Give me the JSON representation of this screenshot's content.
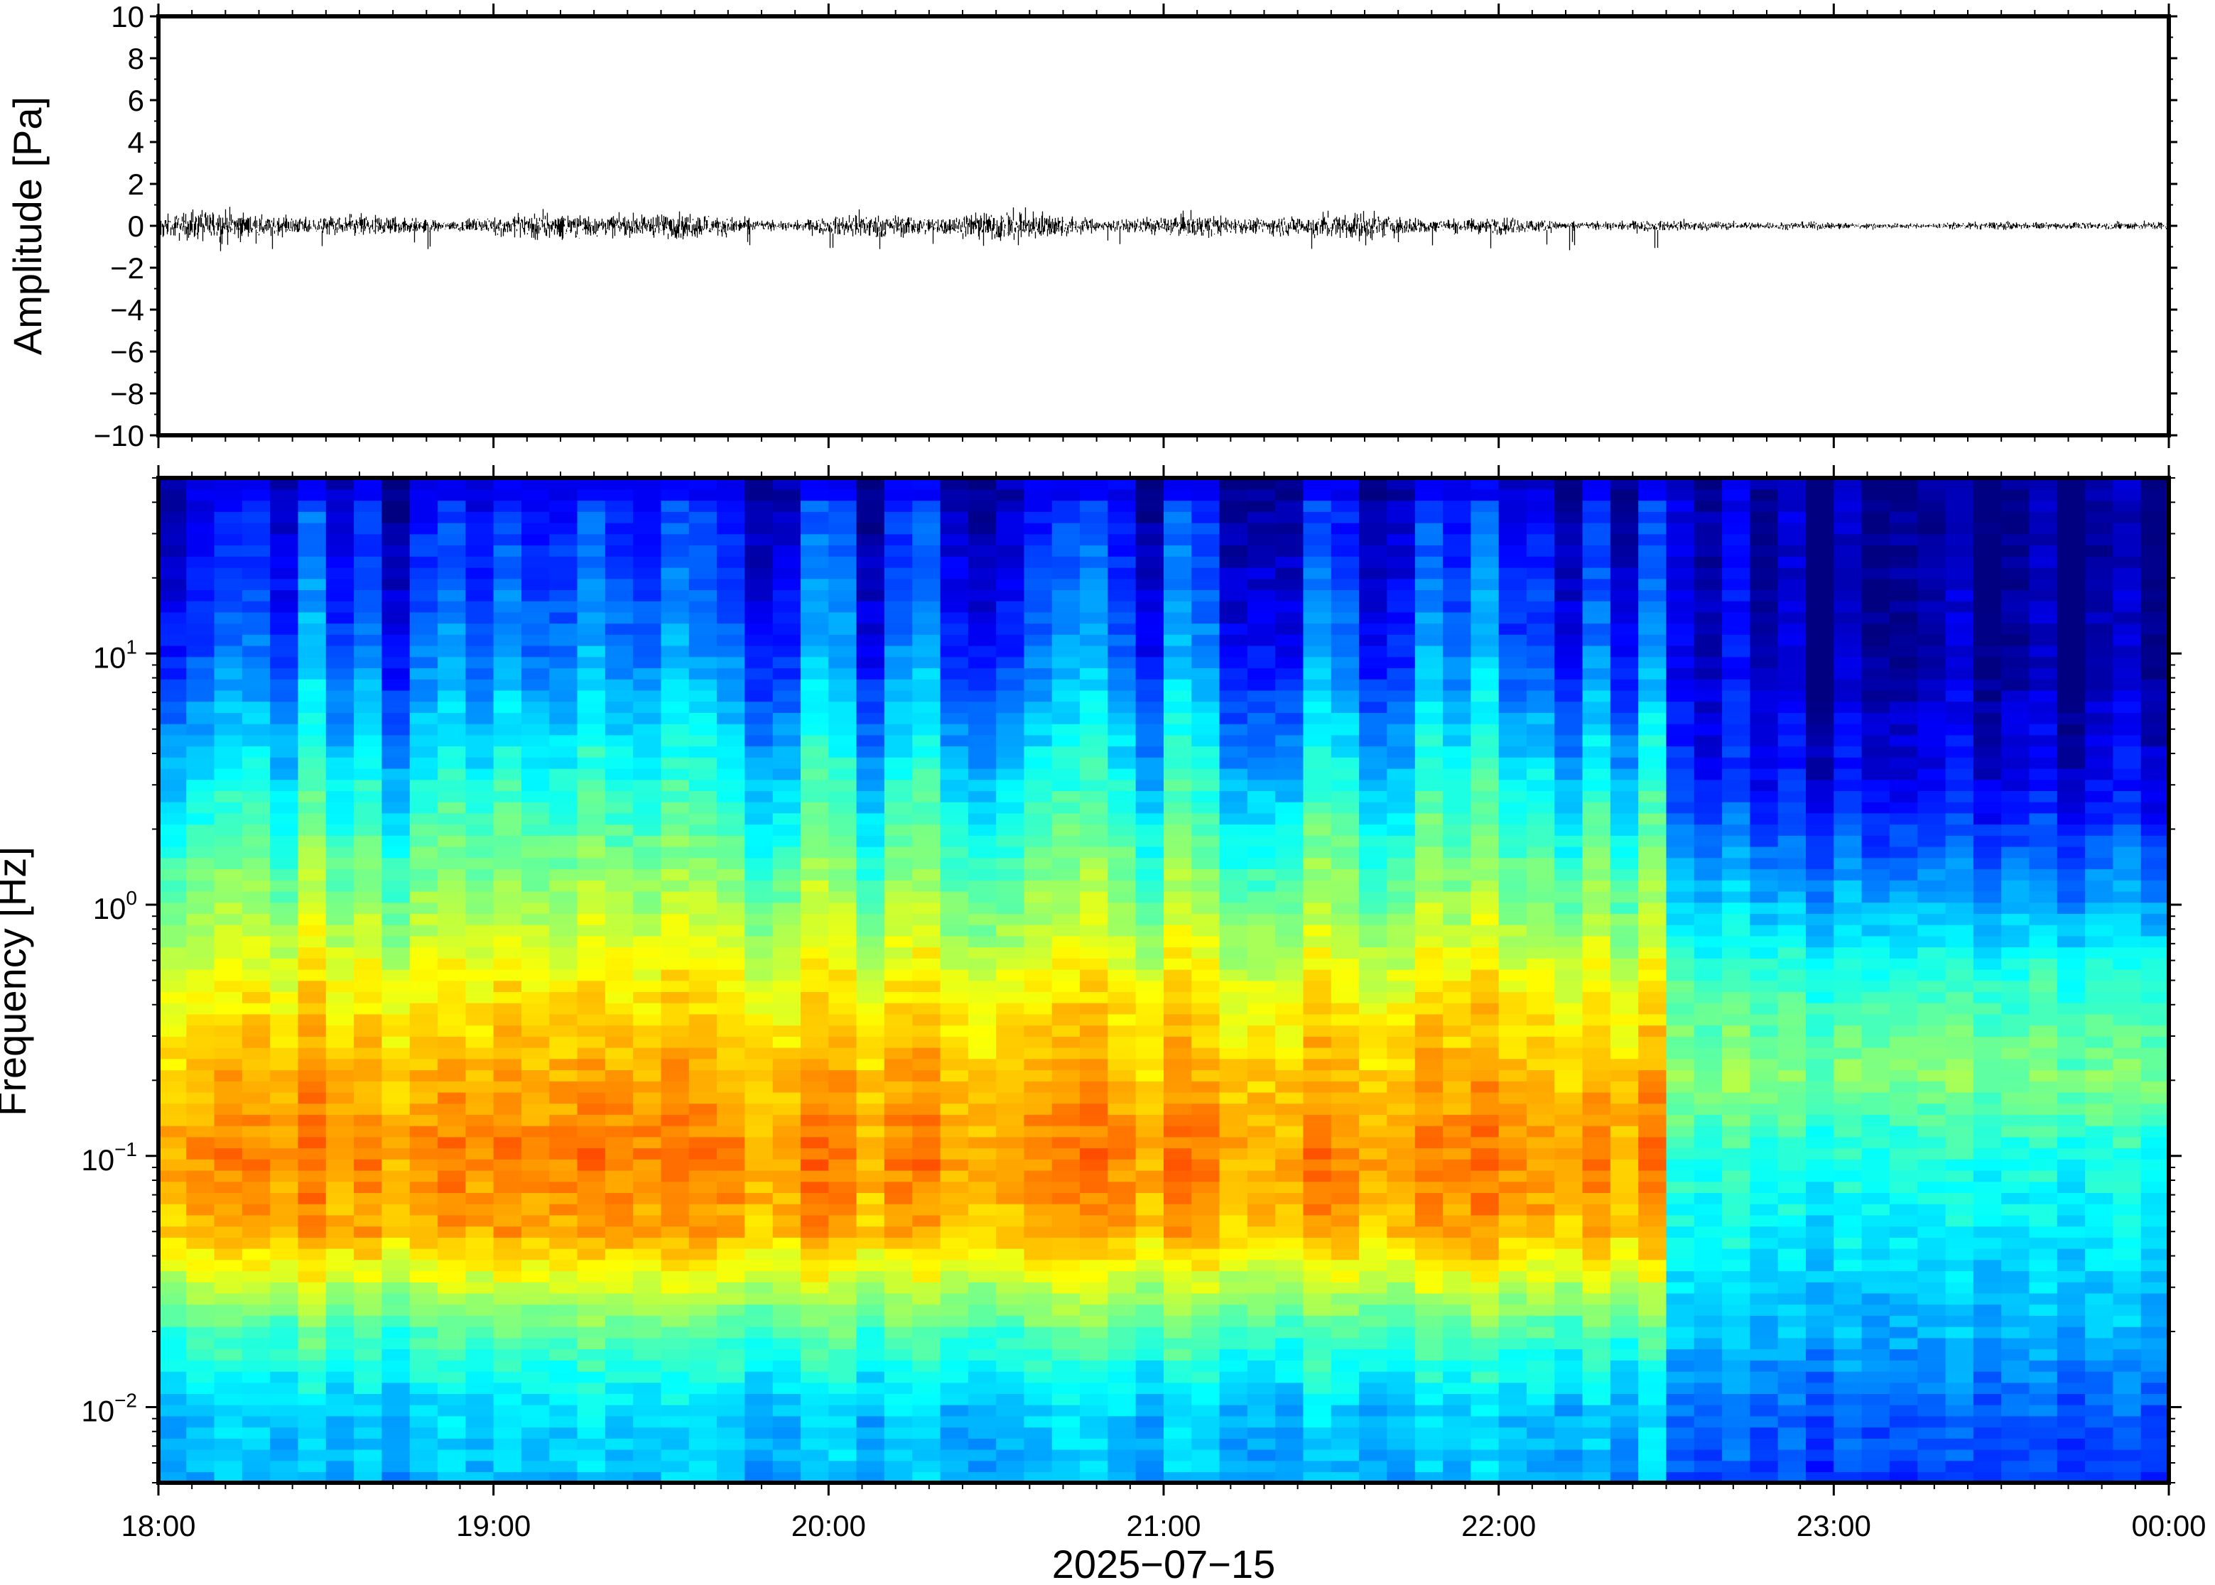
{
  "chart_data": [
    {
      "type": "line",
      "ylabel": "Amplitude [Pa]",
      "ylim": [
        -10,
        10
      ],
      "yticks": [
        10,
        8,
        6,
        4,
        2,
        0,
        -2,
        -4,
        -6,
        -8,
        -10
      ],
      "ytick_labels": [
        "10",
        "8",
        "6",
        "4",
        "2",
        "0",
        "−2",
        "−4",
        "−6",
        "−8",
        "−10"
      ],
      "x_start": "18:00",
      "x_end": "00:00",
      "series": [
        {
          "hour_ranges": [
            "18:00",
            "19:00",
            "20:00",
            "21:00",
            "22:00",
            "22:30",
            "23:00",
            "00:00"
          ],
          "envelope_pa": [
            0.5,
            0.45,
            0.45,
            0.5,
            0.35,
            0.12,
            0.08,
            0.08
          ],
          "color": "#000000"
        }
      ]
    },
    {
      "type": "heatmap",
      "ylabel": "Frequency [Hz]",
      "xlabel": "2025−07−15",
      "yscale": "log",
      "ylim": [
        0.005,
        50
      ],
      "yticks": [
        {
          "value": 10,
          "base": "10",
          "exp": "1"
        },
        {
          "value": 1,
          "base": "10",
          "exp": "0"
        },
        {
          "value": 0.1,
          "base": "10",
          "exp": "−1"
        },
        {
          "value": 0.01,
          "base": "10",
          "exp": "−2"
        }
      ],
      "xticks": [
        "18:00",
        "19:00",
        "20:00",
        "21:00",
        "22:00",
        "23:00",
        "00:00"
      ],
      "colormap": "jet",
      "change_time": "22:30",
      "profile_before_change": {
        "freq_hz": [
          0.005,
          0.01,
          0.02,
          0.05,
          0.1,
          0.2,
          0.5,
          1,
          3,
          10,
          50
        ],
        "level": [
          0.3,
          0.33,
          0.45,
          0.7,
          0.74,
          0.7,
          0.62,
          0.52,
          0.38,
          0.22,
          0.1
        ]
      },
      "profile_after_change": {
        "freq_hz": [
          0.005,
          0.01,
          0.02,
          0.05,
          0.1,
          0.2,
          0.5,
          1,
          3,
          10,
          50
        ],
        "level": [
          0.18,
          0.22,
          0.3,
          0.36,
          0.4,
          0.5,
          0.42,
          0.3,
          0.12,
          0.04,
          0.02
        ]
      }
    }
  ]
}
